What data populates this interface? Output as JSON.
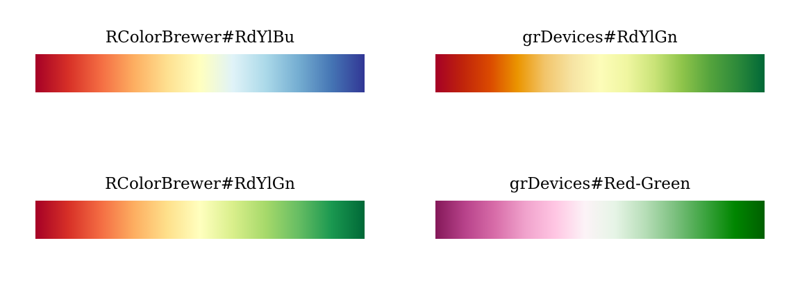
{
  "chart_data": [
    {
      "type": "colormap",
      "title": "RColorBrewer#RdYlBu",
      "colors": [
        "#A50026",
        "#D73027",
        "#F46D43",
        "#FDAE61",
        "#FEE090",
        "#FFFFBF",
        "#E0F3F8",
        "#ABD9E9",
        "#74ADD1",
        "#4575B4",
        "#313695"
      ]
    },
    {
      "type": "colormap",
      "title": "grDevices#RdYlGn",
      "colors": [
        "#A50026",
        "#C0240B",
        "#DB4A00",
        "#EB9500",
        "#F2C56B",
        "#F6E4A4",
        "#FDFCB9",
        "#EFF6A0",
        "#C9E377",
        "#8EC44A",
        "#55A43D",
        "#2D8A3A",
        "#006837"
      ]
    },
    {
      "type": "colormap",
      "title": "RColorBrewer#RdYlGn",
      "colors": [
        "#A50026",
        "#D73027",
        "#F46D43",
        "#FDAE61",
        "#FEE08B",
        "#FFFFBF",
        "#D9EF8B",
        "#A6D96A",
        "#66BD63",
        "#1A9850",
        "#006837"
      ]
    },
    {
      "type": "colormap",
      "title": "grDevices#Red-Green",
      "colors": [
        "#841859",
        "#B8438B",
        "#D86DA9",
        "#F0A2CC",
        "#FFC6E3",
        "#FCF3F7",
        "#E6F4E6",
        "#B7DEB8",
        "#7CC07F",
        "#3DA440",
        "#008600",
        "#005F00"
      ]
    }
  ]
}
